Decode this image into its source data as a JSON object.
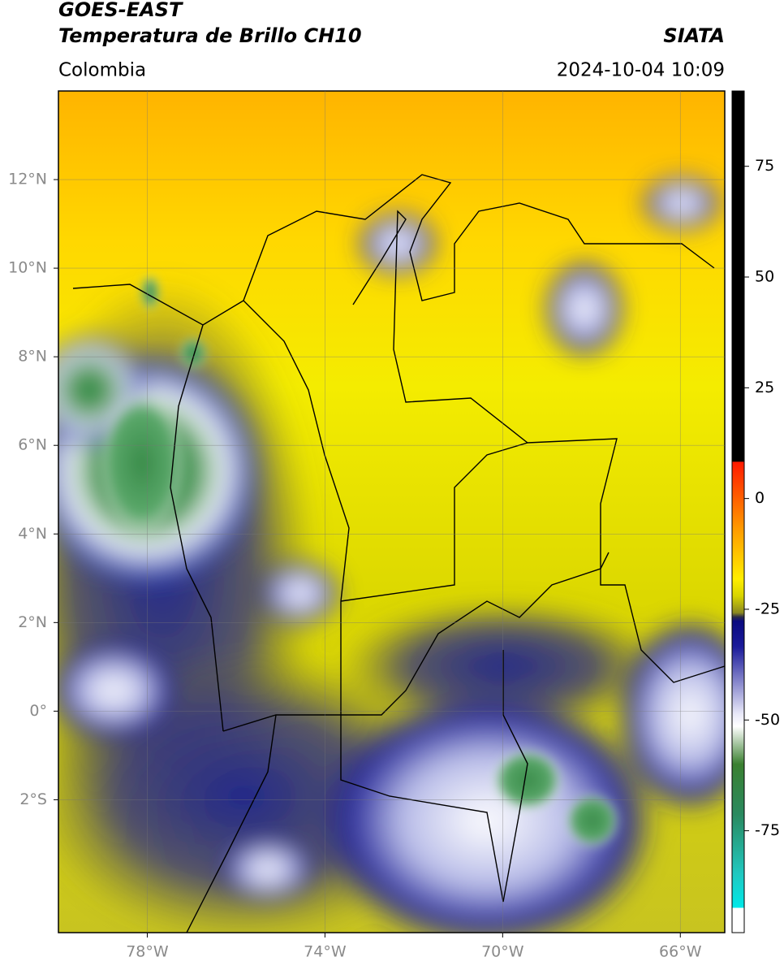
{
  "header": {
    "title": "GOES-EAST",
    "subtitle": "Temperatura de Brillo CH10",
    "region": "Colombia",
    "source": "SIATA",
    "datetime": "2024-10-04 10:09"
  },
  "map": {
    "lonlim": [
      -80,
      -65
    ],
    "latlim": [
      -5,
      14
    ],
    "xticks": [
      {
        "value": -78,
        "label": "78°W"
      },
      {
        "value": -74,
        "label": "74°W"
      },
      {
        "value": -70,
        "label": "70°W"
      },
      {
        "value": -66,
        "label": "66°W"
      }
    ],
    "yticks": [
      {
        "value": 12,
        "label": "12°N"
      },
      {
        "value": 10,
        "label": "10°N"
      },
      {
        "value": 8,
        "label": "8°N"
      },
      {
        "value": 6,
        "label": "6°N"
      },
      {
        "value": 4,
        "label": "4°N"
      },
      {
        "value": 2,
        "label": "2°N"
      },
      {
        "value": 0,
        "label": "0°"
      },
      {
        "value": -2,
        "label": "2°S"
      }
    ],
    "grid": true
  },
  "colorbar": {
    "clim": [
      -98,
      92
    ],
    "ticks": [
      75,
      50,
      25,
      0,
      -25,
      -50,
      -75
    ]
  }
}
